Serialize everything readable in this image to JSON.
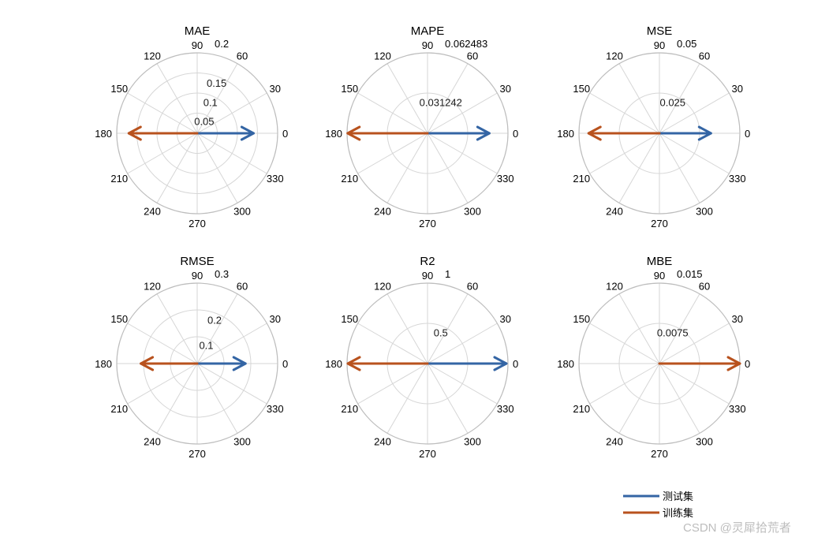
{
  "chart_data": {
    "type": "polar",
    "angle_ticks": [
      "0",
      "30",
      "60",
      "90",
      "120",
      "150",
      "180",
      "210",
      "240",
      "270",
      "300",
      "330"
    ],
    "series": [
      {
        "name": "测试集",
        "color": "#3465a4"
      },
      {
        "name": "训练集",
        "color": "#b8521e"
      }
    ],
    "panels": [
      {
        "title": "MAE",
        "rmax": 0.2,
        "rticks": [
          "0.05",
          "0.1",
          "0.15"
        ],
        "rmax_label": "0.2",
        "vectors": [
          {
            "series": "测试集",
            "angle": 0,
            "r": 0.14
          },
          {
            "series": "训练集",
            "angle": 180,
            "r": 0.17
          }
        ]
      },
      {
        "title": "MAPE",
        "rmax": 0.062483,
        "rticks": [
          "0.031242"
        ],
        "rmax_label": "0.062483",
        "vectors": [
          {
            "series": "测试集",
            "angle": 0,
            "r": 0.048
          },
          {
            "series": "训练集",
            "angle": 180,
            "r": 0.062
          }
        ]
      },
      {
        "title": "MSE",
        "rmax": 0.05,
        "rticks": [
          "0.025"
        ],
        "rmax_label": "0.05",
        "vectors": [
          {
            "series": "测试集",
            "angle": 0,
            "r": 0.032
          },
          {
            "series": "训练集",
            "angle": 180,
            "r": 0.044
          }
        ]
      },
      {
        "title": "RMSE",
        "rmax": 0.3,
        "rticks": [
          "0.1",
          "0.2"
        ],
        "rmax_label": "0.3",
        "vectors": [
          {
            "series": "测试集",
            "angle": 0,
            "r": 0.18
          },
          {
            "series": "训练集",
            "angle": 180,
            "r": 0.21
          }
        ]
      },
      {
        "title": "R2",
        "rmax": 1,
        "rticks": [
          "0.5"
        ],
        "rmax_label": "1",
        "vectors": [
          {
            "series": "测试集",
            "angle": 0,
            "r": 0.98
          },
          {
            "series": "训练集",
            "angle": 180,
            "r": 0.99
          }
        ]
      },
      {
        "title": "MBE",
        "rmax": 0.015,
        "rticks": [
          "0.0075"
        ],
        "rmax_label": "0.015",
        "vectors": [
          {
            "series": "测试集",
            "angle": 0,
            "r": 0.0
          },
          {
            "series": "训练集",
            "angle": 0,
            "r": 0.015
          }
        ]
      }
    ],
    "grid": true,
    "legend_position": "bottom-right"
  },
  "watermark": "CSDN @灵犀拾荒者"
}
